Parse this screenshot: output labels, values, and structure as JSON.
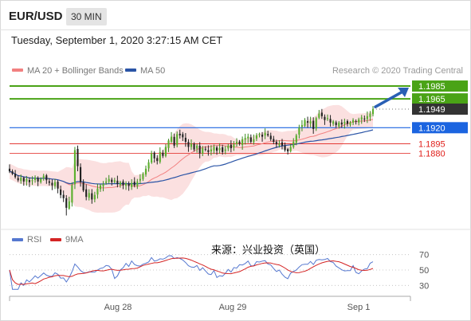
{
  "header": {
    "symbol": "EUR/USD",
    "timeframe": "30 MIN"
  },
  "timestamp": "Tuesday, September 1, 2020 3:27:15 AM CET",
  "legend": {
    "ma20": "MA 20 + Bollinger Bands",
    "ma50": "MA 50",
    "rsi": "RSI",
    "ma9": "9MA"
  },
  "copyright": "Research © 2020 Trading Central",
  "watermark": "来源：兴业投资（英国）",
  "colors": {
    "resistance": "#4aa316",
    "support": "#1b64e0",
    "level_red": "#e0201b",
    "ma20": "#f28080",
    "bands_fill": "#fbe0e0",
    "ma50": "#2a54a6",
    "rsi_line": "#5578d0",
    "rsi_ma": "#d42424",
    "arrow": "#2a60b4",
    "last_price": "#333333"
  },
  "chart_data": [
    {
      "type": "candlestick",
      "title": "EUR/USD",
      "timeframe": "30 MIN",
      "x_tick_labels": [
        "Aug 28",
        "Aug 29",
        "Sep 1"
      ],
      "ylim": [
        1.1765,
        1.1995
      ],
      "last_price": 1.1949,
      "levels": [
        {
          "value": 1.1985,
          "label": "1.1985",
          "kind": "resistance"
        },
        {
          "value": 1.1965,
          "label": "1.1965",
          "kind": "resistance"
        },
        {
          "value": 1.1949,
          "label": "1.1949",
          "kind": "last"
        },
        {
          "value": 1.192,
          "label": "1.1920",
          "kind": "support"
        },
        {
          "value": 1.1895,
          "label": "1.1895",
          "kind": "minor"
        },
        {
          "value": 1.188,
          "label": "1.1880",
          "kind": "minor"
        }
      ],
      "forecast_arrow": {
        "from": 1.195,
        "to": 1.1985
      },
      "closes": [
        1.1852,
        1.1848,
        1.1843,
        1.1838,
        1.1842,
        1.1836,
        1.184,
        1.1835,
        1.1838,
        1.1842,
        1.1836,
        1.184,
        1.1845,
        1.1838,
        1.1834,
        1.183,
        1.1835,
        1.1825,
        1.1815,
        1.181,
        1.1795,
        1.1805,
        1.183,
        1.1885,
        1.186,
        1.1835,
        1.1822,
        1.1812,
        1.1818,
        1.1808,
        1.1815,
        1.1825,
        1.183,
        1.1832,
        1.1836,
        1.184,
        1.1835,
        1.1838,
        1.1832,
        1.1835,
        1.183,
        1.1833,
        1.1829,
        1.1834,
        1.183,
        1.1836,
        1.184,
        1.1848,
        1.1856,
        1.1866,
        1.188,
        1.1872,
        1.1868,
        1.1882,
        1.1876,
        1.189,
        1.19,
        1.1906,
        1.1892,
        1.191,
        1.1908,
        1.1905,
        1.1898,
        1.189,
        1.1895,
        1.1886,
        1.1892,
        1.188,
        1.1888,
        1.1886,
        1.1882,
        1.1886,
        1.189,
        1.1884,
        1.1888,
        1.1882,
        1.1886,
        1.1892,
        1.1888,
        1.1894,
        1.1898,
        1.1895,
        1.1902,
        1.1904,
        1.1906,
        1.1898,
        1.1902,
        1.1908,
        1.191,
        1.1906,
        1.1912,
        1.1908,
        1.1902,
        1.1898,
        1.1894,
        1.1895,
        1.1892,
        1.1885,
        1.1883,
        1.189,
        1.1898,
        1.1908,
        1.192,
        1.1924,
        1.1932,
        1.1928,
        1.193,
        1.1918,
        1.1935,
        1.1942,
        1.1938,
        1.1932,
        1.1935,
        1.1928,
        1.193,
        1.1924,
        1.1928,
        1.1925,
        1.1929,
        1.1926,
        1.1928,
        1.1932,
        1.1929,
        1.1933,
        1.1936,
        1.1934,
        1.1938,
        1.1942,
        1.1949
      ],
      "rsi": {
        "ylim": [
          20,
          80
        ],
        "ticks": [
          70,
          50,
          30
        ]
      }
    }
  ]
}
